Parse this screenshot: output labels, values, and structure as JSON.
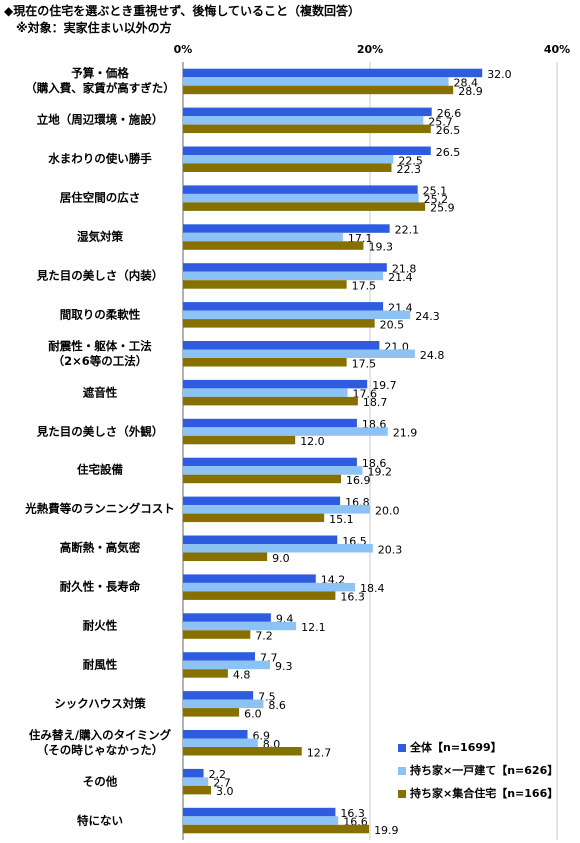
{
  "chart_data": {
    "type": "bar",
    "orientation": "horizontal",
    "title": "◆現在の住宅を選ぶとき重視せず、後悔していること（複数回答）",
    "subtitle": "※対象：実家住まい以外の方",
    "categories": [
      "予算・価格\n（購入費、家賃が高すぎた）",
      "立地（周辺環境・施設）",
      "水まわりの使い勝手",
      "居住空間の広さ",
      "湿気対策",
      "見た目の美しさ（内装）",
      "間取りの柔軟性",
      "耐震性・躯体・工法\n（2×6等の工法）",
      "遮音性",
      "見た目の美しさ（外観）",
      "住宅設備",
      "光熱費等のランニングコスト",
      "高断熱・高気密",
      "耐久性・長寿命",
      "耐火性",
      "耐風性",
      "シックハウス対策",
      "住み替え/購入のタイミング\n（その時じゃなかった）",
      "その他",
      "特にない"
    ],
    "series": [
      {
        "name": "全体【n=1699】",
        "color": "#2f5be0",
        "values": [
          32.0,
          26.6,
          26.5,
          25.1,
          22.1,
          21.8,
          21.4,
          21.0,
          19.7,
          18.6,
          18.6,
          16.8,
          16.5,
          14.2,
          9.4,
          7.7,
          7.5,
          6.9,
          2.2,
          16.3
        ],
        "value_labels": [
          "32.0",
          "26.6",
          "26.5",
          "25.1",
          "22.1",
          "21.8",
          "21.4",
          "21.0",
          "19.7",
          "18.6",
          "18.6",
          "16.8",
          "16.5",
          "14.2",
          "9.4",
          "7.7",
          "7.5",
          "6.9",
          "2.2",
          "16.3"
        ]
      },
      {
        "name": "持ち家×一戸建て【n=626】",
        "color": "#8cc3f4",
        "values": [
          28.4,
          25.7,
          22.5,
          25.2,
          17.1,
          21.4,
          24.3,
          24.8,
          17.6,
          21.9,
          19.2,
          20.0,
          20.3,
          18.4,
          12.1,
          9.3,
          8.6,
          8.0,
          2.7,
          16.6
        ],
        "value_labels": [
          "28.4",
          "25.7",
          "22.5",
          "25.2",
          "17.1",
          "21.4",
          "24.3",
          "24.8",
          "17.6",
          "21.9",
          "19.2",
          "20.0",
          "20.3",
          "18.4",
          "12.1",
          "9.3",
          "8.6",
          "8.0",
          "2.7",
          "16.6"
        ]
      },
      {
        "name": "持ち家×集合住宅【n=166】",
        "color": "#857000",
        "values": [
          28.9,
          26.5,
          22.3,
          25.9,
          19.3,
          17.5,
          20.5,
          17.5,
          18.7,
          12.0,
          16.9,
          15.1,
          9.0,
          16.3,
          7.2,
          4.8,
          6.0,
          12.7,
          3.0,
          19.9
        ],
        "value_labels": [
          "28.9",
          "26.5",
          "22.3",
          "25.9",
          "19.3",
          "17.5",
          "20.5",
          "17.5",
          "18.7",
          "12.0",
          "16.9",
          "15.1",
          "9.0",
          "16.3",
          "7.2",
          "4.8",
          "6.0",
          "12.7",
          "3.0",
          "19.9"
        ]
      }
    ],
    "xlim": [
      0,
      40
    ],
    "xticks": [
      {
        "value": 0,
        "label": "0%"
      },
      {
        "value": 20,
        "label": "20%"
      },
      {
        "value": 40,
        "label": "40%"
      }
    ],
    "grid": true,
    "legend": "bottom-right"
  }
}
